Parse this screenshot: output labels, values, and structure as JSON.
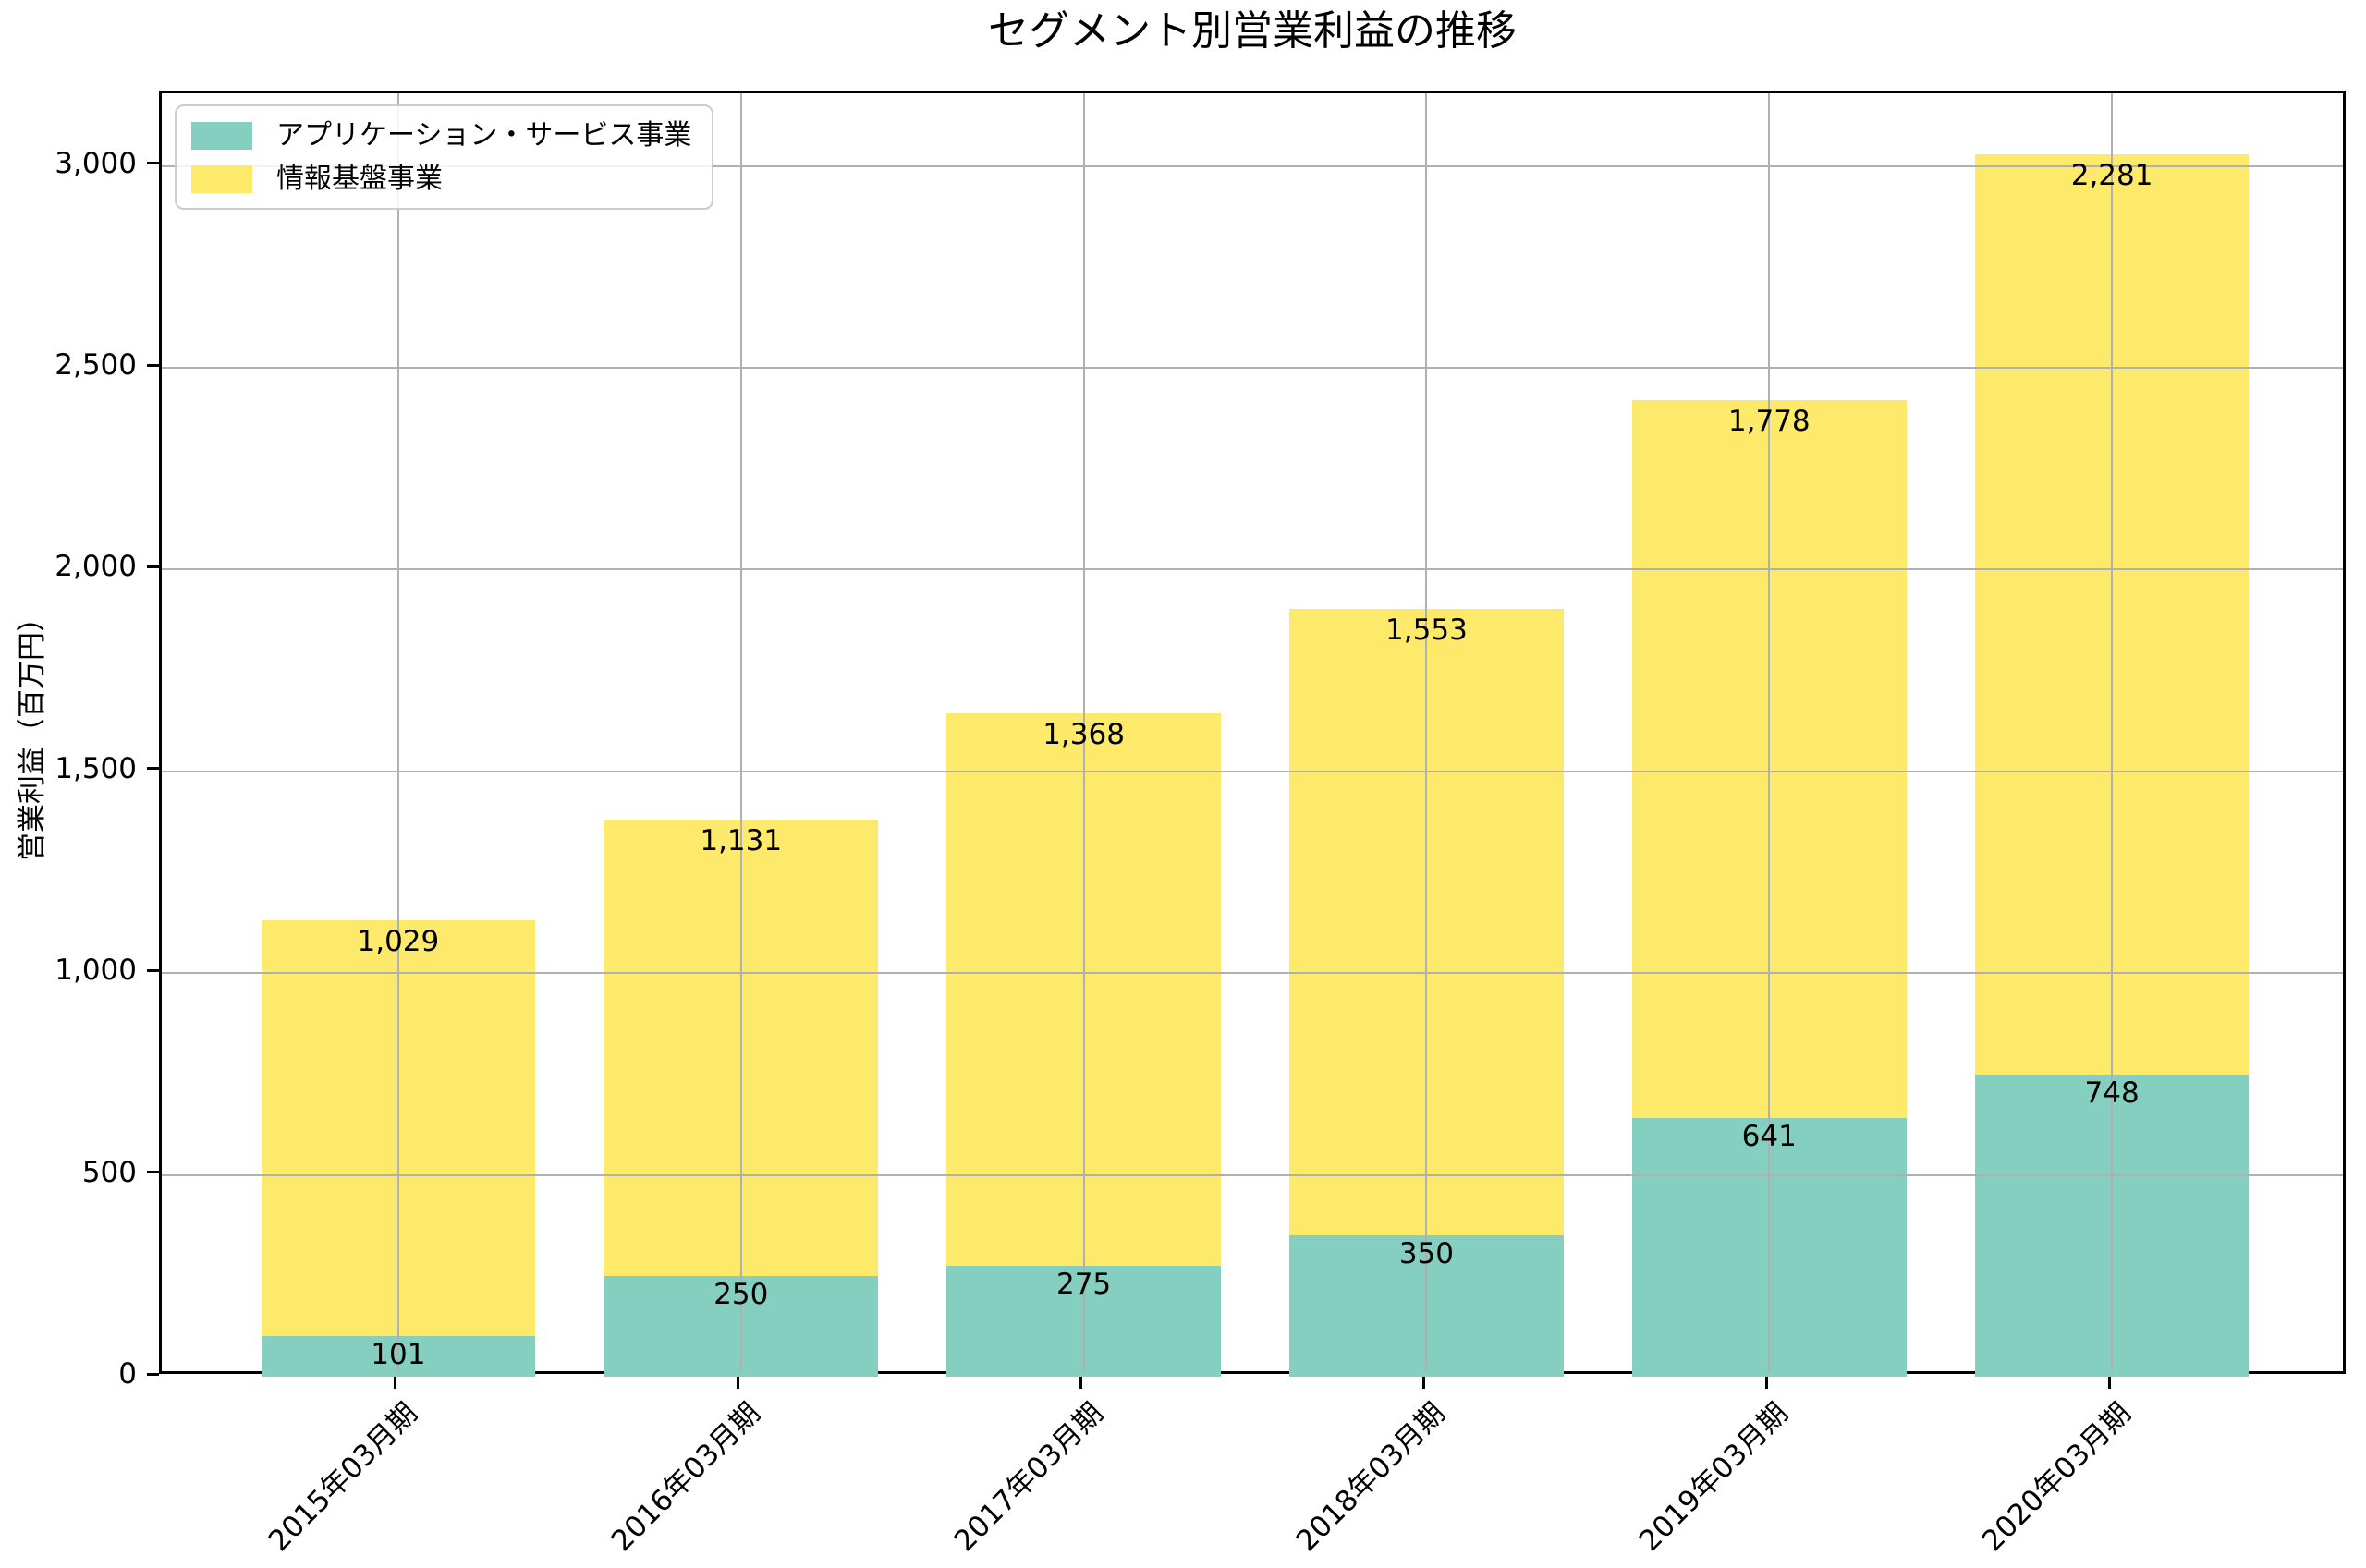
{
  "chart_data": {
    "type": "bar",
    "stacked": true,
    "title": "セグメント別営業利益の推移",
    "xlabel": "",
    "ylabel": "営業利益（百万円）",
    "categories": [
      "2015年03月期",
      "2016年03月期",
      "2017年03月期",
      "2018年03月期",
      "2019年03月期",
      "2020年03月期"
    ],
    "series": [
      {
        "name": "アプリケーション・サービス事業",
        "color": "#84CFC0",
        "values": [
          101,
          250,
          275,
          350,
          641,
          748
        ]
      },
      {
        "name": "情報基盤事業",
        "color": "#FDE96A",
        "values": [
          1029,
          1131,
          1368,
          1553,
          1778,
          2281
        ]
      }
    ],
    "totals": [
      1130,
      1381,
      1643,
      1903,
      2419,
      3029
    ],
    "bar_labels_visible": true,
    "ylim": [
      0,
      3180
    ],
    "yticks": [
      0,
      500,
      1000,
      1500,
      2000,
      2500,
      3000
    ],
    "ytick_labels": [
      "0",
      "500",
      "1,000",
      "1,500",
      "2,000",
      "2,500",
      "3,000"
    ],
    "grid": true,
    "grid_color": "#b0b0b0",
    "grid_above_bars": true,
    "legend_position": "upper-left",
    "x_tick_rotation_deg": 45
  }
}
